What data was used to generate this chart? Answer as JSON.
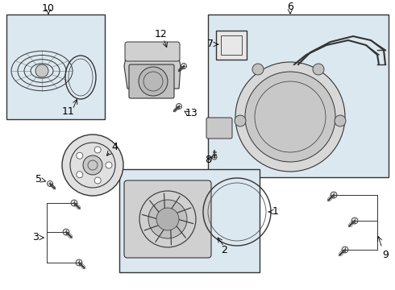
{
  "bg_color": "#ffffff",
  "box_bg": "#dce8f0",
  "line_color": "#444444",
  "part_line": "#333333",
  "figsize": [
    4.9,
    3.6
  ],
  "dpi": 100,
  "ax_bg": "#f5f5f5"
}
